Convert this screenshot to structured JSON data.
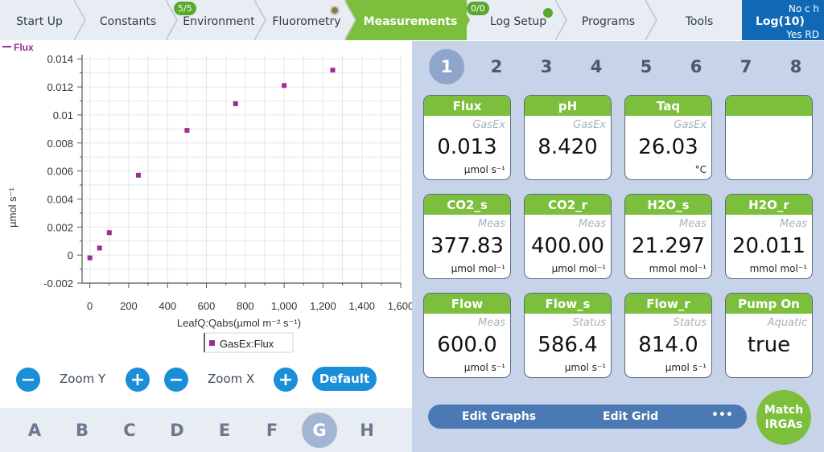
{
  "tabs": [
    {
      "label": "Start Up",
      "active": false
    },
    {
      "label": "Constants",
      "active": false
    },
    {
      "label": "Environment",
      "active": false,
      "badge": "5/5"
    },
    {
      "label": "Fluorometry",
      "active": false
    },
    {
      "label": "Measurements",
      "active": true
    },
    {
      "label": "Log Setup",
      "active": false,
      "badge": "0/0"
    },
    {
      "label": "Programs",
      "active": false
    },
    {
      "label": "Tools",
      "active": false
    }
  ],
  "log": {
    "no_ch": "No c h",
    "title": "Log(10)",
    "status": "Yes RD"
  },
  "colors": {
    "accent_green": "#7cbf3c",
    "blue": "#1a8fd8",
    "marker": "#9b2d94",
    "log_blue": "#0f69b4"
  },
  "chart_data": {
    "type": "scatter",
    "legend_top": "Flux",
    "legend_bottom": "GasEx:Flux",
    "xlabel": "LeafQ:Qabs(µmol m⁻² s⁻¹)",
    "ylabel": "µmol s⁻¹",
    "xlim": [
      -40,
      1600
    ],
    "ylim": [
      -0.002,
      0.0143
    ],
    "x_ticks": [
      "0",
      "200",
      "400",
      "600",
      "800",
      "1,000",
      "1,200",
      "1,400",
      "1,600"
    ],
    "y_ticks": [
      "-0.002",
      "0",
      "0.002",
      "0.004",
      "0.006",
      "0.008",
      "0.01",
      "0.012",
      "0.014"
    ],
    "grid": true,
    "series": [
      {
        "name": "GasEx:Flux",
        "x": [
          0,
          50,
          100,
          250,
          500,
          750,
          1000,
          1250
        ],
        "y": [
          -0.0002,
          0.0005,
          0.0016,
          0.0057,
          0.0089,
          0.0108,
          0.0121,
          0.0132
        ]
      }
    ]
  },
  "zoom": {
    "zoom_y": "Zoom Y",
    "zoom_x": "Zoom X",
    "minus": "−",
    "plus": "+",
    "default": "Default"
  },
  "letters": [
    "A",
    "B",
    "C",
    "D",
    "E",
    "F",
    "G",
    "H"
  ],
  "active_letter": "G",
  "numbers": [
    "1",
    "2",
    "3",
    "4",
    "5",
    "6",
    "7",
    "8"
  ],
  "active_number": "1",
  "tiles": [
    {
      "title": "Flux",
      "group": "GasEx",
      "value": "0.013",
      "unit": "µmol s⁻¹"
    },
    {
      "title": "pH",
      "group": "GasEx",
      "value": "8.420",
      "unit": ""
    },
    {
      "title": "Taq",
      "group": "GasEx",
      "value": "26.03",
      "unit": "°C"
    },
    {
      "title": "",
      "group": "",
      "value": "",
      "unit": ""
    },
    {
      "title": "CO2_s",
      "group": "Meas",
      "value": "377.83",
      "unit": "µmol mol⁻¹"
    },
    {
      "title": "CO2_r",
      "group": "Meas",
      "value": "400.00",
      "unit": "µmol mol⁻¹"
    },
    {
      "title": "H2O_s",
      "group": "Meas",
      "value": "21.297",
      "unit": "mmol mol⁻¹"
    },
    {
      "title": "H2O_r",
      "group": "Meas",
      "value": "20.011",
      "unit": "mmol mol⁻¹"
    },
    {
      "title": "Flow",
      "group": "Meas",
      "value": "600.0",
      "unit": "µmol s⁻¹"
    },
    {
      "title": "Flow_s",
      "group": "Status",
      "value": "586.4",
      "unit": "µmol s⁻¹"
    },
    {
      "title": "Flow_r",
      "group": "Status",
      "value": "814.0",
      "unit": "µmol s⁻¹"
    },
    {
      "title": "Pump On",
      "group": "Aquatic",
      "value": "true",
      "unit": ""
    }
  ],
  "actions": {
    "edit_graphs": "Edit Graphs",
    "edit_grid": "Edit Grid",
    "more": "•••"
  },
  "match": {
    "line1": "Match",
    "line2": "IRGAs"
  }
}
